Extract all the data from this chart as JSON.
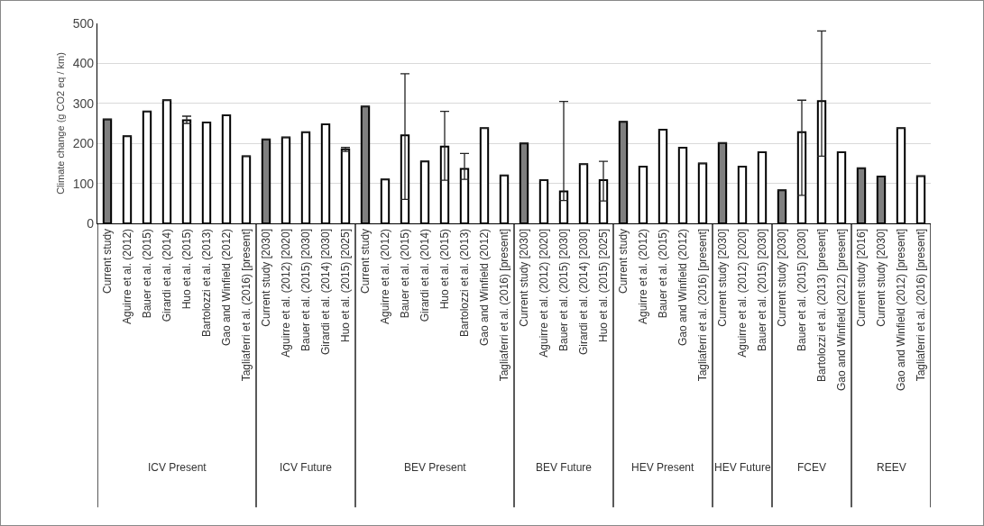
{
  "chart_data": {
    "type": "bar",
    "ylabel": "Climate change (g CO2 eq / km)",
    "categories": [
      "Current study",
      "Aguirre et al. (2012)",
      "Bauer et al. (2015)",
      "Girardi et al. (2014)",
      "Huo et al. (2015)",
      "Bartolozzi et al. (2013)",
      "Gao and Winfield (2012)",
      "Tagliaferri et al. (2016) [present]",
      "Current study [2030]",
      "Aguirre et al. (2012) [2020]",
      "Bauer et al. (2015) [2030]",
      "Girardi et al. (2014) [2030]",
      "Huo et al. (2015) [2025]",
      "Current study",
      "Aguirre et al. (2012)",
      "Bauer et al. (2015)",
      "Girardi et al. (2014)",
      "Huo et al. (2015)",
      "Bartolozzi et al. (2013)",
      "Gao and Winfield (2012)",
      "Tagliaferri et al. (2016) [present]",
      "Current study [2030]",
      "Aguirre et al. (2012) [2020]",
      "Bauer et al. (2015) [2030]",
      "Girardi et al. (2014) [2030]",
      "Huo et al. (2015) [2025]",
      "Current study",
      "Aguirre et al. (2012)",
      "Bauer et al. (2015)",
      "Gao and Winfield (2012)",
      "Tagliaferri et al. (2016) [present]",
      "Current study [2030]",
      "Aguirre et al. (2012) [2020]",
      "Bauer et al. (2015) [2030]",
      "Current study [2030]",
      "Bauer et al. (2015) [2030]",
      "Bartolozzi et al. (2013) [present]",
      "Gao and Winfield (2012) [present]",
      "Current study [2016]",
      "Current study [2030]",
      "Gao and Winfield (2012) [present]",
      "Tagliaferri et al. (2016) [present]"
    ],
    "values": [
      260,
      218,
      280,
      308,
      258,
      252,
      270,
      168,
      210,
      215,
      228,
      248,
      185,
      292,
      110,
      220,
      155,
      192,
      136,
      238,
      120,
      200,
      108,
      80,
      148,
      108,
      254,
      142,
      234,
      189,
      150,
      201,
      142,
      178,
      83,
      228,
      306,
      178,
      138,
      117,
      238,
      118
    ],
    "errors": [
      null,
      null,
      null,
      null,
      [
        250,
        268
      ],
      null,
      null,
      null,
      null,
      null,
      null,
      null,
      [
        180,
        190
      ],
      null,
      null,
      [
        60,
        374
      ],
      null,
      [
        108,
        280
      ],
      [
        110,
        175
      ],
      null,
      null,
      null,
      null,
      [
        57,
        305
      ],
      null,
      [
        56,
        155
      ],
      null,
      null,
      null,
      null,
      null,
      null,
      null,
      null,
      null,
      [
        70,
        308
      ],
      [
        168,
        481
      ],
      null,
      null,
      null,
      null,
      null
    ],
    "colors": [
      "#7f7f7f",
      "#ffffff",
      "#ffffff",
      "#ffffff",
      "#ffffff",
      "#ffffff",
      "#ffffff",
      "#ffffff",
      "#7f7f7f",
      "#ffffff",
      "#ffffff",
      "#ffffff",
      "#ffffff",
      "#7f7f7f",
      "#ffffff",
      "#ffffff",
      "#ffffff",
      "#ffffff",
      "#ffffff",
      "#ffffff",
      "#ffffff",
      "#7f7f7f",
      "#ffffff",
      "#ffffff",
      "#ffffff",
      "#ffffff",
      "#7f7f7f",
      "#ffffff",
      "#ffffff",
      "#ffffff",
      "#ffffff",
      "#7f7f7f",
      "#ffffff",
      "#ffffff",
      "#7f7f7f",
      "#ffffff",
      "#ffffff",
      "#ffffff",
      "#7f7f7f",
      "#7f7f7f",
      "#ffffff",
      "#ffffff"
    ],
    "ylim": [
      0,
      500
    ],
    "yticks": [
      0,
      100,
      200,
      300,
      400,
      500
    ],
    "grid": "y",
    "annotations": [
      "ICV Present",
      "ICV Future",
      "BEV Present",
      "BEV Future",
      "HEV Present",
      "HEV Future",
      "FCEV",
      "REEV"
    ]
  }
}
